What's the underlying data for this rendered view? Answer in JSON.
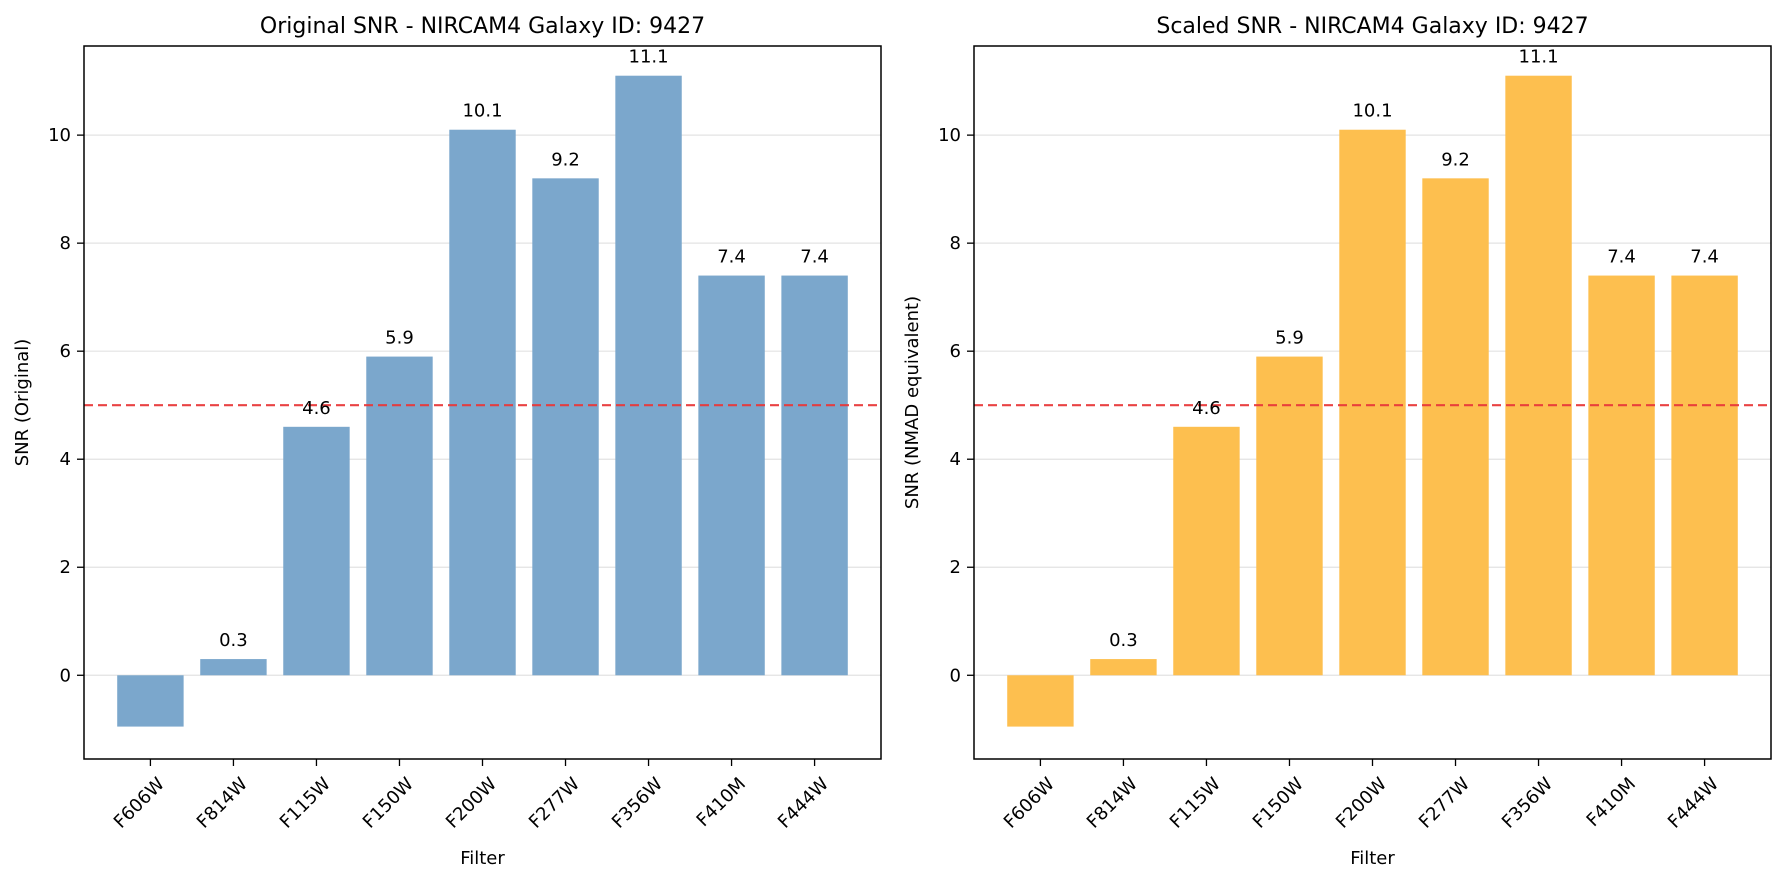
{
  "chart_data": [
    {
      "type": "bar",
      "title": "Original SNR - NIRCAM4 Galaxy ID: 9427",
      "xlabel": "Filter",
      "ylabel": "SNR (Original)",
      "categories": [
        "F606W",
        "F814W",
        "F115W",
        "F150W",
        "F200W",
        "F277W",
        "F356W",
        "F410M",
        "F444W"
      ],
      "values": [
        -0.95,
        0.3,
        4.6,
        5.9,
        10.1,
        9.2,
        11.1,
        7.4,
        7.4
      ],
      "data_labels": [
        "",
        "0.3",
        "4.6",
        "5.9",
        "10.1",
        "9.2",
        "11.1",
        "7.4",
        "7.4"
      ],
      "ylim": [
        -1.55,
        11.65
      ],
      "yticks": [
        0,
        2,
        4,
        6,
        8,
        10
      ],
      "threshold": 5,
      "bar_color": "#7BA7CC",
      "threshold_color": "#E8393A",
      "grid": "y"
    },
    {
      "type": "bar",
      "title": "Scaled SNR - NIRCAM4 Galaxy ID: 9427",
      "xlabel": "Filter",
      "ylabel": "SNR (NMAD equivalent)",
      "categories": [
        "F606W",
        "F814W",
        "F115W",
        "F150W",
        "F200W",
        "F277W",
        "F356W",
        "F410M",
        "F444W"
      ],
      "values": [
        -0.95,
        0.3,
        4.6,
        5.9,
        10.1,
        9.2,
        11.1,
        7.4,
        7.4
      ],
      "data_labels": [
        "",
        "0.3",
        "4.6",
        "5.9",
        "10.1",
        "9.2",
        "11.1",
        "7.4",
        "7.4"
      ],
      "ylim": [
        -1.55,
        11.65
      ],
      "yticks": [
        0,
        2,
        4,
        6,
        8,
        10
      ],
      "threshold": 5,
      "bar_color": "#FDBF4F",
      "threshold_color": "#E8393A",
      "grid": "y"
    }
  ]
}
